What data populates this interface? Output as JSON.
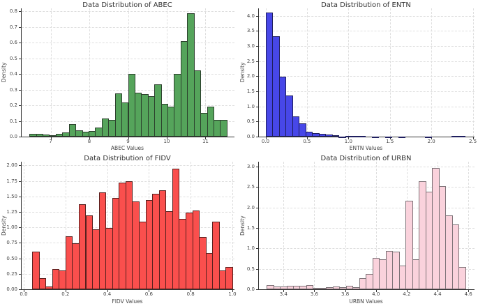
{
  "figure": {
    "background": "#ffffff"
  },
  "chart_data": [
    {
      "type": "bar",
      "variant": "histogram",
      "title": "Data Distribution of ABEC",
      "xlabel": "ABEC Values",
      "ylabel": "Density",
      "bar_color": "#55a45b",
      "edge_color": "#2c402d",
      "grid": "dashed",
      "legend": "none",
      "bin_start": 6.45,
      "bin_width": 0.17,
      "values": [
        0.02,
        0.02,
        0.015,
        0.01,
        0.02,
        0.025,
        0.08,
        0.04,
        0.03,
        0.035,
        0.06,
        0.115,
        0.105,
        0.275,
        0.22,
        0.4,
        0.28,
        0.27,
        0.26,
        0.335,
        0.21,
        0.19,
        0.4,
        0.61,
        0.79,
        0.425,
        0.15,
        0.19,
        0.105,
        0.105
      ],
      "xlim": [
        6.25,
        11.75
      ],
      "ylim": [
        0,
        0.82
      ],
      "x_ticks": [
        {
          "v": 7,
          "label": "7"
        },
        {
          "v": 8,
          "label": "8"
        },
        {
          "v": 9,
          "label": "9"
        },
        {
          "v": 10,
          "label": "10"
        },
        {
          "v": 11,
          "label": "11"
        }
      ],
      "y_ticks": [
        {
          "v": 0.0,
          "label": "0.0"
        },
        {
          "v": 0.1,
          "label": "0.1"
        },
        {
          "v": 0.2,
          "label": "0.2"
        },
        {
          "v": 0.3,
          "label": "0.3"
        },
        {
          "v": 0.4,
          "label": "0.4"
        },
        {
          "v": 0.5,
          "label": "0.5"
        },
        {
          "v": 0.6,
          "label": "0.6"
        },
        {
          "v": 0.7,
          "label": "0.7"
        },
        {
          "v": 0.8,
          "label": "0.8"
        }
      ]
    },
    {
      "type": "bar",
      "variant": "histogram",
      "title": "Data Distribution of ENTN",
      "xlabel": "ENTN Values",
      "ylabel": "Density",
      "bar_color": "#4747e8",
      "edge_color": "#1f1f5e",
      "grid": "dashed",
      "legend": "none",
      "bin_start": 0.0,
      "bin_width": 0.08,
      "values": [
        4.12,
        3.33,
        1.98,
        1.36,
        0.67,
        0.43,
        0.17,
        0.12,
        0.1,
        0.07,
        0.04,
        0.01,
        0.03,
        0.02,
        0.02,
        0,
        0.01,
        0,
        0.01,
        0,
        0.01,
        0,
        0,
        0,
        0.01,
        0,
        0,
        0,
        0.02,
        0.02
      ],
      "xlim": [
        -0.08,
        2.52
      ],
      "ylim": [
        0,
        4.25
      ],
      "x_ticks": [
        {
          "v": 0.0,
          "label": "0.0"
        },
        {
          "v": 0.5,
          "label": "0.5"
        },
        {
          "v": 1.0,
          "label": "1.0"
        },
        {
          "v": 1.5,
          "label": "1.5"
        },
        {
          "v": 2.0,
          "label": "2.0"
        },
        {
          "v": 2.5,
          "label": "2.5"
        }
      ],
      "y_ticks": [
        {
          "v": 0.0,
          "label": "0.0"
        },
        {
          "v": 0.5,
          "label": "0.5"
        },
        {
          "v": 1.0,
          "label": "1.0"
        },
        {
          "v": 1.5,
          "label": "1.5"
        },
        {
          "v": 2.0,
          "label": "2.0"
        },
        {
          "v": 2.5,
          "label": "2.5"
        },
        {
          "v": 3.0,
          "label": "3.0"
        },
        {
          "v": 3.5,
          "label": "3.5"
        },
        {
          "v": 4.0,
          "label": "4.0"
        }
      ]
    },
    {
      "type": "bar",
      "variant": "histogram",
      "title": "Data Distribution of FIDV",
      "xlabel": "FIDV Values",
      "ylabel": "Density",
      "bar_color": "#fa4f4d",
      "edge_color": "#58201e",
      "grid": "dashed",
      "legend": "none",
      "bin_start": 0.04,
      "bin_width": 0.032,
      "values": [
        0.61,
        0.18,
        0.05,
        0.33,
        0.3,
        0.86,
        0.74,
        1.37,
        1.19,
        0.97,
        1.57,
        0.99,
        1.47,
        1.72,
        1.75,
        1.42,
        1.09,
        1.44,
        1.54,
        1.6,
        1.26,
        1.95,
        1.14,
        1.24,
        1.27,
        0.84,
        0.59,
        1.09,
        0.3,
        0.36
      ],
      "xlim": [
        -0.01,
        1.01
      ],
      "ylim": [
        0,
        2.06
      ],
      "x_ticks": [
        {
          "v": 0.0,
          "label": "0.0"
        },
        {
          "v": 0.2,
          "label": "0.2"
        },
        {
          "v": 0.4,
          "label": "0.4"
        },
        {
          "v": 0.6,
          "label": "0.6"
        },
        {
          "v": 0.8,
          "label": "0.8"
        },
        {
          "v": 1.0,
          "label": "1.0"
        }
      ],
      "y_ticks": [
        {
          "v": 0.0,
          "label": "0.00"
        },
        {
          "v": 0.25,
          "label": "0.25"
        },
        {
          "v": 0.5,
          "label": "0.50"
        },
        {
          "v": 0.75,
          "label": "0.75"
        },
        {
          "v": 1.0,
          "label": "1.00"
        },
        {
          "v": 1.25,
          "label": "1.25"
        },
        {
          "v": 1.5,
          "label": "1.50"
        },
        {
          "v": 1.75,
          "label": "1.75"
        },
        {
          "v": 2.0,
          "label": "2.00"
        }
      ]
    },
    {
      "type": "bar",
      "variant": "histogram",
      "title": "Data Distribution of URBN",
      "xlabel": "URBN Values",
      "ylabel": "Density",
      "bar_color": "#fad2dc",
      "edge_color": "#7d7277",
      "grid": "dashed",
      "legend": "none",
      "bin_start": 3.29,
      "bin_width": 0.043,
      "values": [
        0.1,
        0.07,
        0.07,
        0.09,
        0.09,
        0.09,
        0.11,
        0.03,
        0.03,
        0.05,
        0.07,
        0.05,
        0.09,
        0.05,
        0.28,
        0.37,
        0.77,
        0.74,
        0.94,
        0.92,
        0.58,
        2.17,
        0.74,
        2.65,
        2.39,
        2.97,
        2.52,
        1.8,
        1.59,
        0.54
      ],
      "xlim": [
        3.24,
        4.64
      ],
      "ylim": [
        0,
        3.12
      ],
      "x_ticks": [
        {
          "v": 3.4,
          "label": "3.4"
        },
        {
          "v": 3.6,
          "label": "3.6"
        },
        {
          "v": 3.8,
          "label": "3.8"
        },
        {
          "v": 4.0,
          "label": "4.0"
        },
        {
          "v": 4.2,
          "label": "4.2"
        },
        {
          "v": 4.4,
          "label": "4.4"
        },
        {
          "v": 4.6,
          "label": "4.6"
        }
      ],
      "y_ticks": [
        {
          "v": 0.0,
          "label": "0.0"
        },
        {
          "v": 0.5,
          "label": "0.5"
        },
        {
          "v": 1.0,
          "label": "1.0"
        },
        {
          "v": 1.5,
          "label": "1.5"
        },
        {
          "v": 2.0,
          "label": "2.0"
        },
        {
          "v": 2.5,
          "label": "2.5"
        },
        {
          "v": 3.0,
          "label": "3.0"
        }
      ]
    }
  ]
}
